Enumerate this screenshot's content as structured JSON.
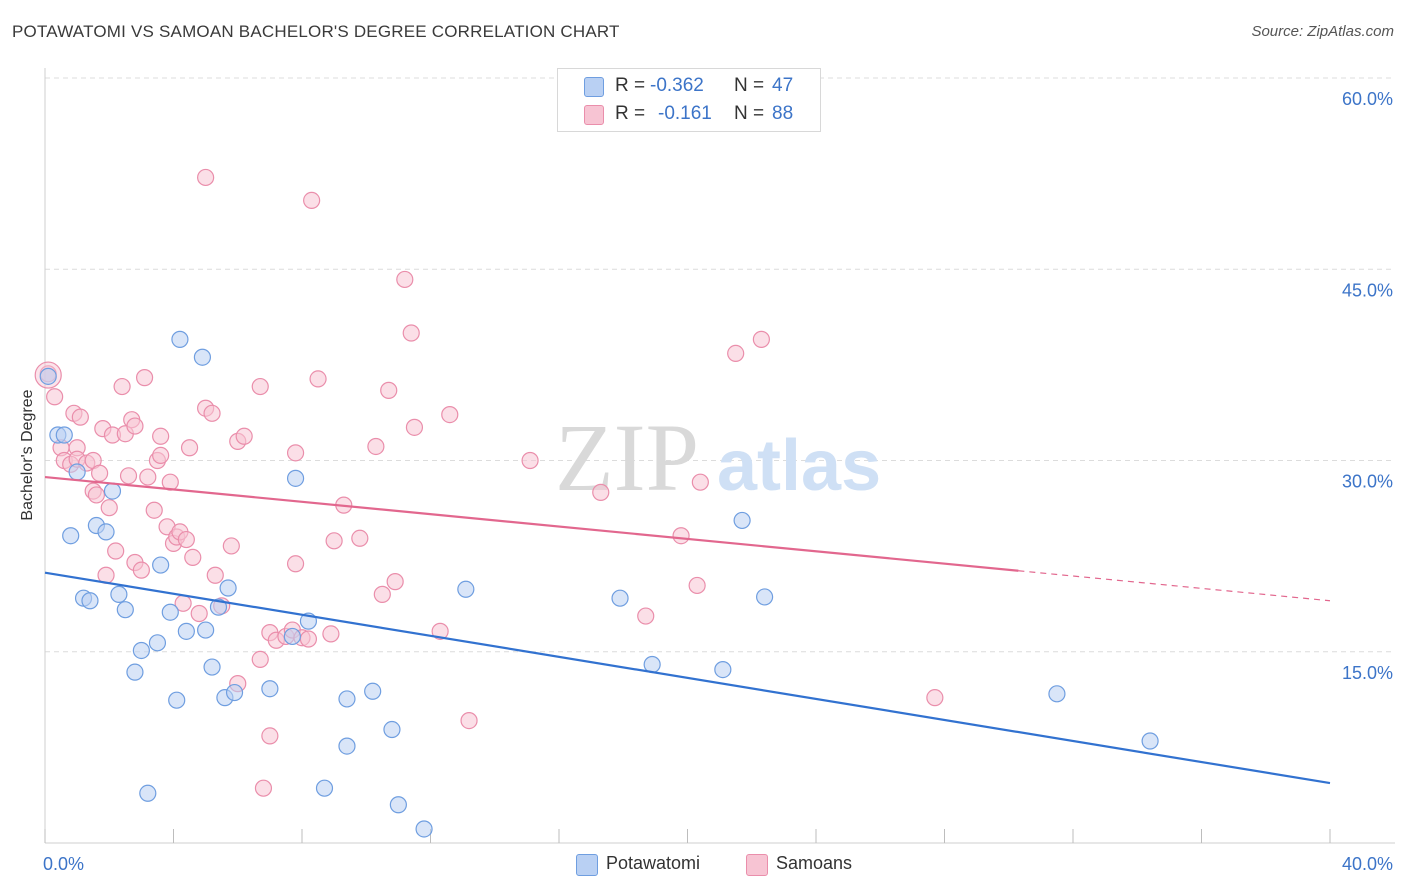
{
  "title": "POTAWATOMI VS SAMOAN BACHELOR'S DEGREE CORRELATION CHART",
  "source": "Source: ZipAtlas.com",
  "watermark": {
    "zip": "ZIP",
    "atlas": "atlas"
  },
  "legend": {
    "potawatomi": {
      "r_label": "R =",
      "r_value": "-0.362",
      "n_label": "N =",
      "n_value": "47"
    },
    "samoans": {
      "r_label": "R =",
      "r_value": "-0.161",
      "n_label": "N =",
      "n_value": "88"
    }
  },
  "bottom_legend": {
    "potawatomi": "Potawatomi",
    "samoans": "Samoans"
  },
  "colors": {
    "blue_fill": "#b9d0f3",
    "blue_stroke": "#6f9ee0",
    "blue_line": "#3272d0",
    "pink_fill": "#f7c4d3",
    "pink_stroke": "#ea8eab",
    "pink_line": "#e2678e",
    "axis_text": "#3c74c8",
    "grid": "#dcdcdc"
  },
  "chart_data": {
    "type": "scatter",
    "title": "POTAWATOMI VS SAMOAN BACHELOR'S DEGREE CORRELATION CHART",
    "xlabel": "",
    "ylabel": "Bachelor's Degree",
    "xlim": [
      0,
      40
    ],
    "ylim": [
      0,
      60
    ],
    "x_tick_labels": [
      "0.0%",
      "40.0%"
    ],
    "y_ticks": [
      15,
      30,
      45,
      60
    ],
    "y_tick_labels": [
      "15.0%",
      "30.0%",
      "45.0%",
      "60.0%"
    ],
    "series": [
      {
        "name": "Potawatomi",
        "r": -0.362,
        "n": 47,
        "trend": {
          "x": [
            0,
            40
          ],
          "y": [
            21.2,
            4.7
          ],
          "solid_until": 40
        },
        "points": [
          [
            0.1,
            36.6
          ],
          [
            0.4,
            32.0
          ],
          [
            0.6,
            32.0
          ],
          [
            0.8,
            24.1
          ],
          [
            1.0,
            29.1
          ],
          [
            1.2,
            19.2
          ],
          [
            1.4,
            19.0
          ],
          [
            1.6,
            24.9
          ],
          [
            1.9,
            24.4
          ],
          [
            2.1,
            27.6
          ],
          [
            2.3,
            19.5
          ],
          [
            2.5,
            18.3
          ],
          [
            2.8,
            13.4
          ],
          [
            3.0,
            15.1
          ],
          [
            3.2,
            3.9
          ],
          [
            3.5,
            15.7
          ],
          [
            3.6,
            21.8
          ],
          [
            3.9,
            18.1
          ],
          [
            4.1,
            11.2
          ],
          [
            4.2,
            39.5
          ],
          [
            4.4,
            16.6
          ],
          [
            4.9,
            38.1
          ],
          [
            5.0,
            16.7
          ],
          [
            5.2,
            13.8
          ],
          [
            5.4,
            18.5
          ],
          [
            5.6,
            11.4
          ],
          [
            5.7,
            20.0
          ],
          [
            5.9,
            11.8
          ],
          [
            7.0,
            12.1
          ],
          [
            7.7,
            16.2
          ],
          [
            7.8,
            28.6
          ],
          [
            8.2,
            17.4
          ],
          [
            8.7,
            4.3
          ],
          [
            9.4,
            7.6
          ],
          [
            9.4,
            11.3
          ],
          [
            10.2,
            11.9
          ],
          [
            10.8,
            8.9
          ],
          [
            11.0,
            3.0
          ],
          [
            11.8,
            1.1
          ],
          [
            13.1,
            19.9
          ],
          [
            17.9,
            19.2
          ],
          [
            18.9,
            14.0
          ],
          [
            21.1,
            13.6
          ],
          [
            21.7,
            25.3
          ],
          [
            22.4,
            19.3
          ],
          [
            31.5,
            11.7
          ],
          [
            34.4,
            8.0
          ]
        ]
      },
      {
        "name": "Samoans",
        "r": -0.161,
        "n": 88,
        "trend": {
          "x": [
            0,
            40
          ],
          "y": [
            28.7,
            19.0
          ],
          "solid_until": 30.3
        },
        "points": [
          [
            0.1,
            36.8
          ],
          [
            0.3,
            35.0
          ],
          [
            0.5,
            31.0
          ],
          [
            0.6,
            30.0
          ],
          [
            0.8,
            29.7
          ],
          [
            0.9,
            33.7
          ],
          [
            1.0,
            31.0
          ],
          [
            1.0,
            30.1
          ],
          [
            1.1,
            33.4
          ],
          [
            1.3,
            29.8
          ],
          [
            1.5,
            30.0
          ],
          [
            1.5,
            27.6
          ],
          [
            1.6,
            27.3
          ],
          [
            1.7,
            29.0
          ],
          [
            1.8,
            32.5
          ],
          [
            1.9,
            21.0
          ],
          [
            2.1,
            32.0
          ],
          [
            2.0,
            26.3
          ],
          [
            2.2,
            22.9
          ],
          [
            2.4,
            35.8
          ],
          [
            2.5,
            32.1
          ],
          [
            2.6,
            28.8
          ],
          [
            2.7,
            33.2
          ],
          [
            2.8,
            32.7
          ],
          [
            2.8,
            22.0
          ],
          [
            3.0,
            21.4
          ],
          [
            3.1,
            36.5
          ],
          [
            3.2,
            28.7
          ],
          [
            3.4,
            26.1
          ],
          [
            3.5,
            30.0
          ],
          [
            3.6,
            30.4
          ],
          [
            3.6,
            31.9
          ],
          [
            3.8,
            24.8
          ],
          [
            3.9,
            28.3
          ],
          [
            4.0,
            23.5
          ],
          [
            4.1,
            24.0
          ],
          [
            4.2,
            24.4
          ],
          [
            4.3,
            18.8
          ],
          [
            4.4,
            23.8
          ],
          [
            4.5,
            31.0
          ],
          [
            4.6,
            22.4
          ],
          [
            4.8,
            18.0
          ],
          [
            5.0,
            52.2
          ],
          [
            5.0,
            34.1
          ],
          [
            5.2,
            33.7
          ],
          [
            5.3,
            21.0
          ],
          [
            5.5,
            18.6
          ],
          [
            5.8,
            23.3
          ],
          [
            6.0,
            31.5
          ],
          [
            6.2,
            31.9
          ],
          [
            6.0,
            12.5
          ],
          [
            6.7,
            35.8
          ],
          [
            6.7,
            14.4
          ],
          [
            6.8,
            4.3
          ],
          [
            7.0,
            8.4
          ],
          [
            7.0,
            16.5
          ],
          [
            7.2,
            15.9
          ],
          [
            7.5,
            16.2
          ],
          [
            7.7,
            16.7
          ],
          [
            7.8,
            30.6
          ],
          [
            7.8,
            21.9
          ],
          [
            8.0,
            16.1
          ],
          [
            8.2,
            16.0
          ],
          [
            8.3,
            50.4
          ],
          [
            8.5,
            36.4
          ],
          [
            8.9,
            16.4
          ],
          [
            9.0,
            23.7
          ],
          [
            9.3,
            26.5
          ],
          [
            9.8,
            23.9
          ],
          [
            10.3,
            31.1
          ],
          [
            10.5,
            19.5
          ],
          [
            10.7,
            35.5
          ],
          [
            10.9,
            20.5
          ],
          [
            11.2,
            44.2
          ],
          [
            11.4,
            40.0
          ],
          [
            11.5,
            32.6
          ],
          [
            12.3,
            16.6
          ],
          [
            12.6,
            33.6
          ],
          [
            13.2,
            9.6
          ],
          [
            15.1,
            30.0
          ],
          [
            17.3,
            27.5
          ],
          [
            18.7,
            17.8
          ],
          [
            19.8,
            24.1
          ],
          [
            20.4,
            28.3
          ],
          [
            20.3,
            20.2
          ],
          [
            21.5,
            38.4
          ],
          [
            22.3,
            39.5
          ],
          [
            27.7,
            11.4
          ]
        ]
      }
    ]
  }
}
